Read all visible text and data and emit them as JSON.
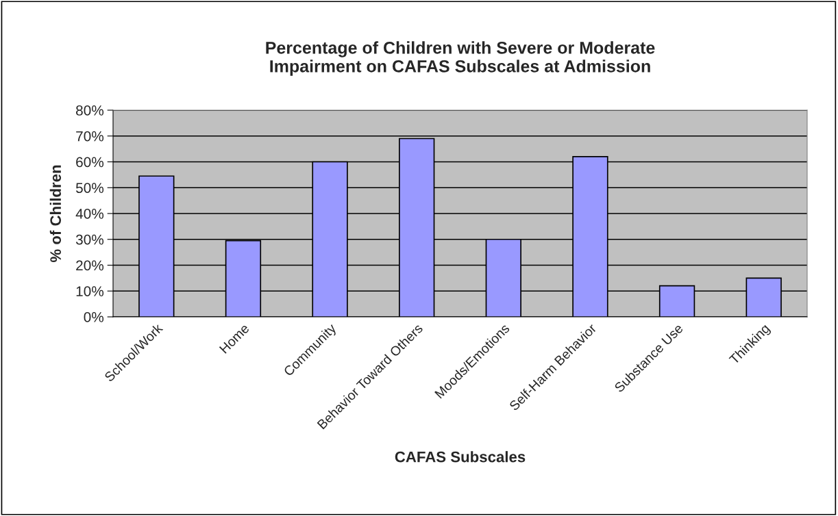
{
  "chart_data": {
    "type": "bar",
    "title": "Percentage of Children with Severe or Moderate\nImpairment on CAFAS Subscales at Admission",
    "xlabel": "CAFAS Subscales",
    "ylabel": "% of Children",
    "categories": [
      "School/Work",
      "Home",
      "Community",
      "Behavior Toward Others",
      "Moods/Emotions",
      "Self-Harm Behavior",
      "Substance Use",
      "Thinking"
    ],
    "values": [
      54.5,
      29.5,
      60,
      69,
      30,
      62,
      12,
      15
    ],
    "color": "#9999ff",
    "ylim": [
      0,
      80
    ],
    "yticks": [
      {
        "value": 0,
        "label": "0%"
      },
      {
        "value": 10,
        "label": "10%"
      },
      {
        "value": 20,
        "label": "20%"
      },
      {
        "value": 30,
        "label": "30%"
      },
      {
        "value": 40,
        "label": "40%"
      },
      {
        "value": 50,
        "label": "50%"
      },
      {
        "value": 60,
        "label": "60%"
      },
      {
        "value": 70,
        "label": "70%"
      },
      {
        "value": 80,
        "label": "80%"
      }
    ],
    "grid": "y"
  }
}
